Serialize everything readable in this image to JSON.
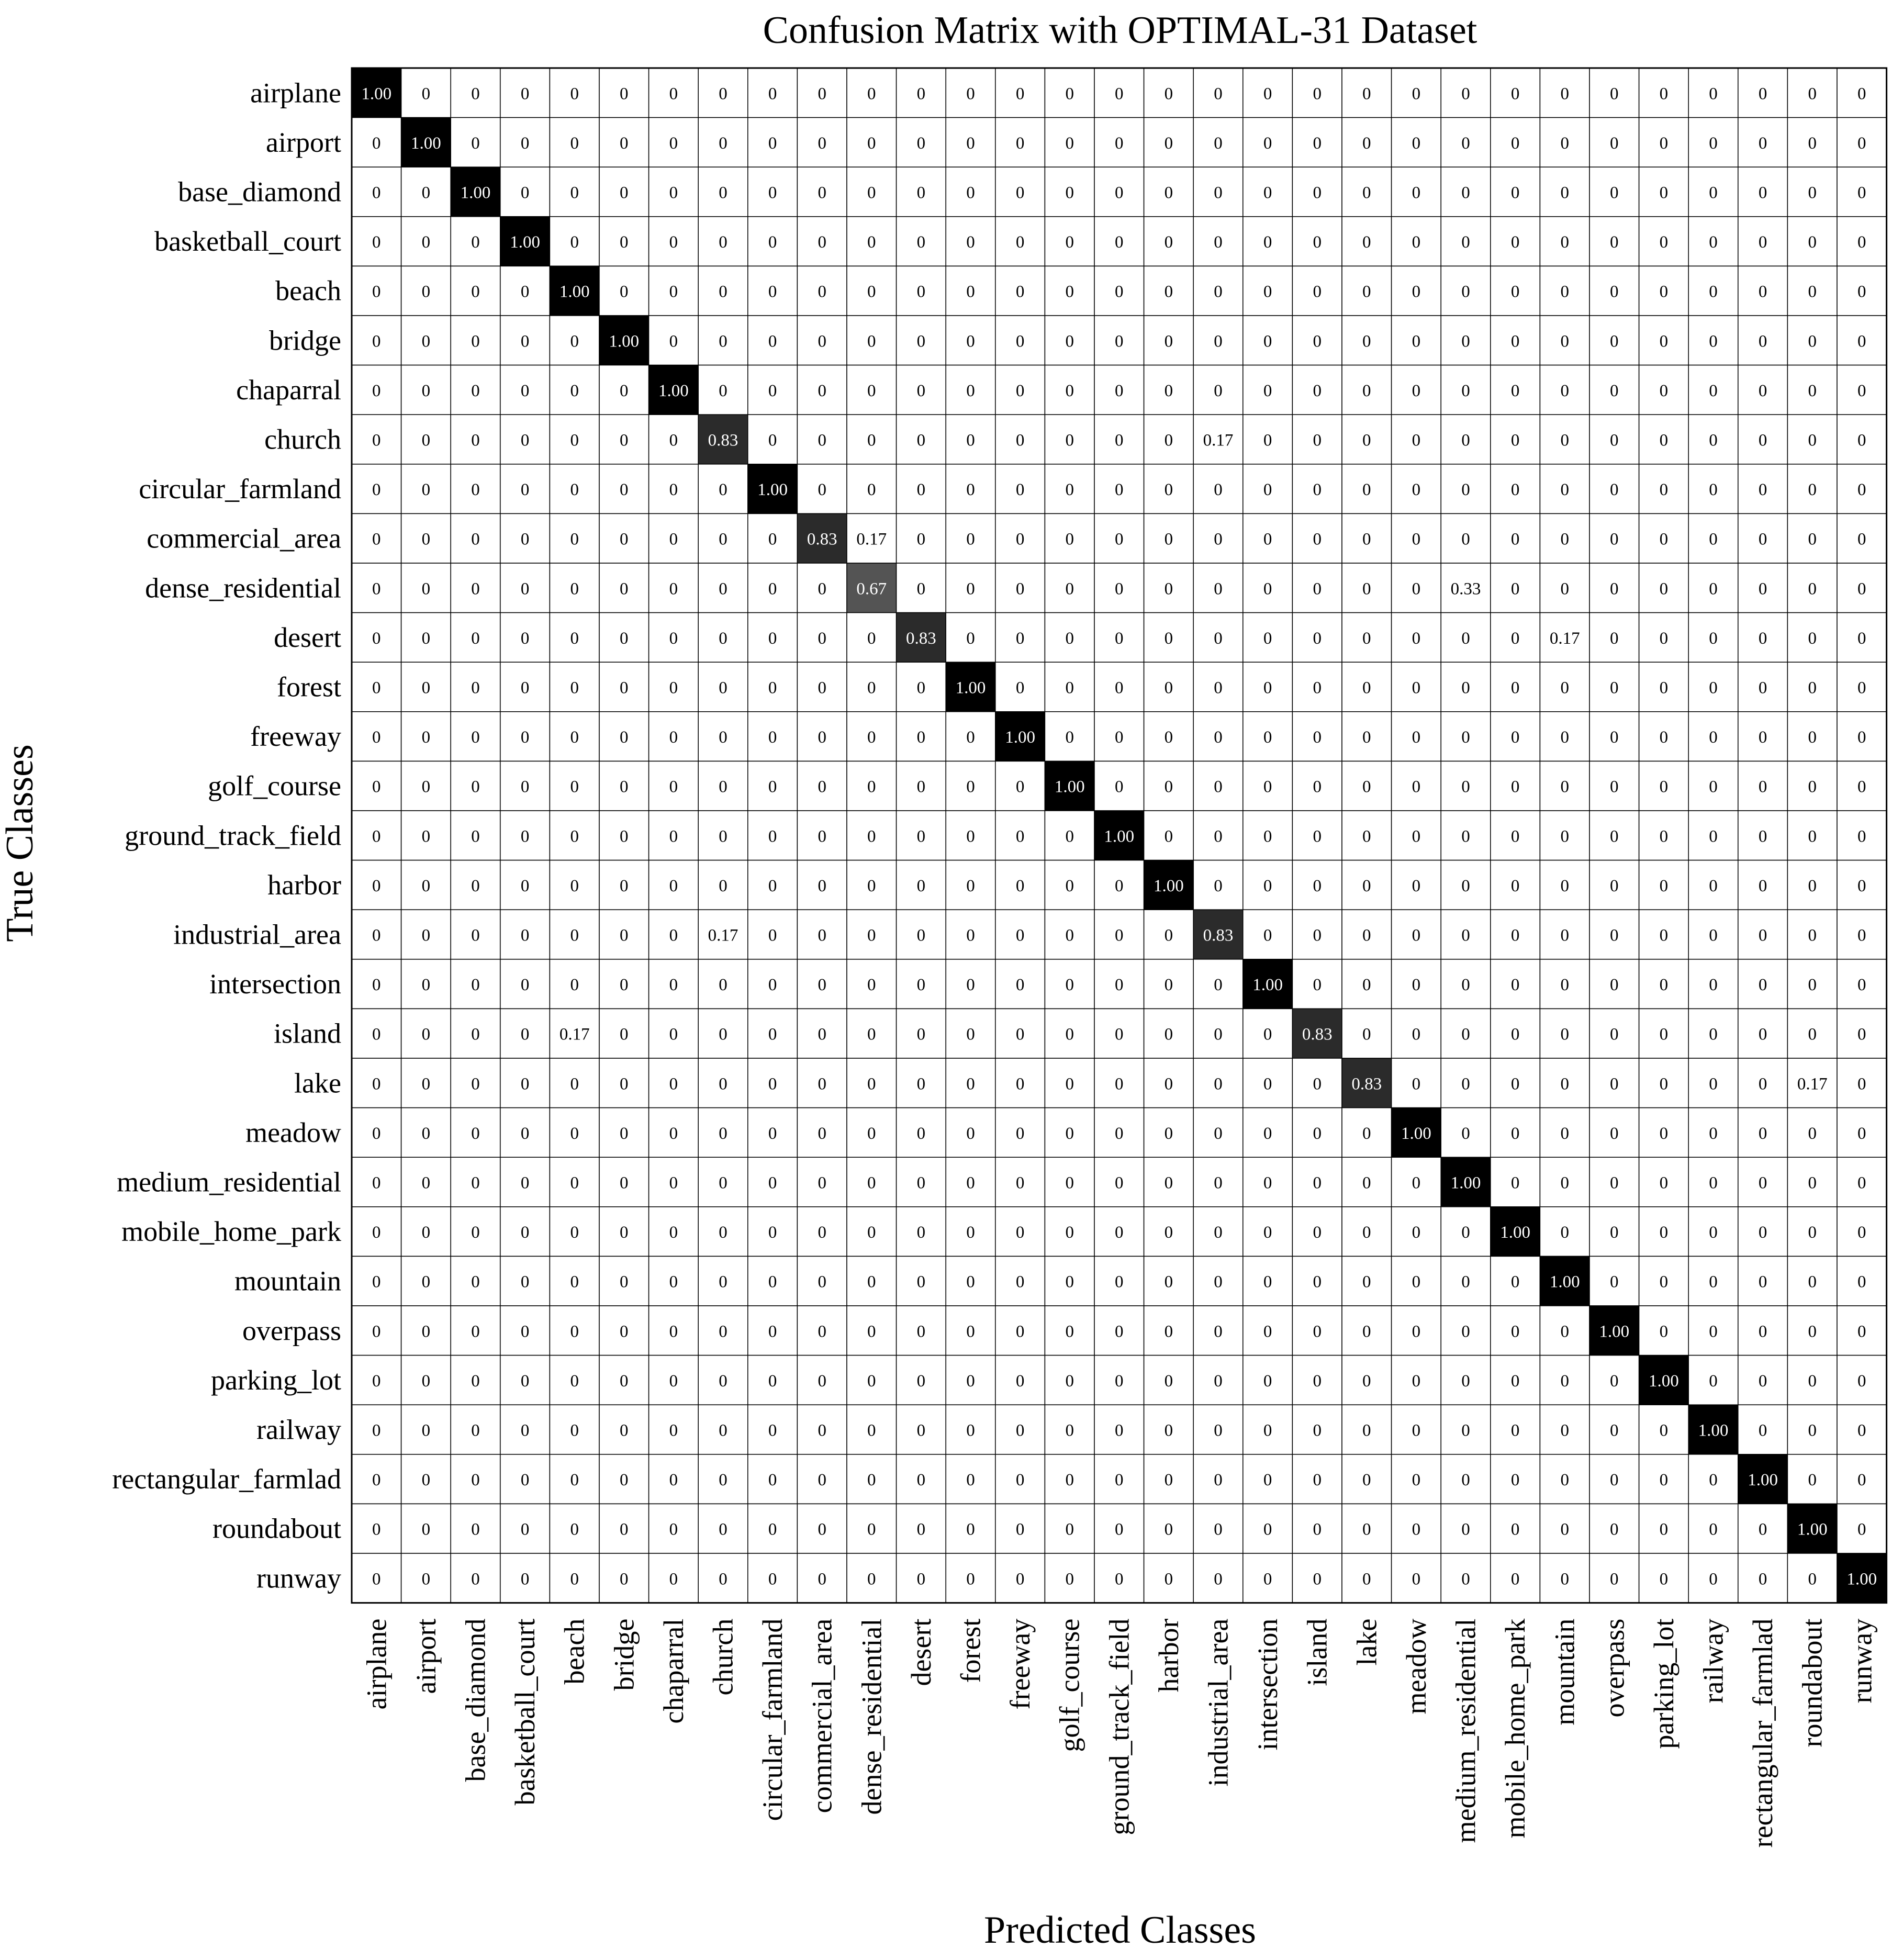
{
  "chart_data": {
    "type": "heatmap",
    "title": "Confusion Matrix with OPTIMAL-31 Dataset",
    "xlabel": "Predicted Classes",
    "ylabel": "True Classes",
    "classes": [
      "airplane",
      "airport",
      "base_diamond",
      "basketball_court",
      "beach",
      "bridge",
      "chaparral",
      "church",
      "circular_farmland",
      "commercial_area",
      "dense_residential",
      "desert",
      "forest",
      "freeway",
      "golf_course",
      "ground_track_field",
      "harbor",
      "industrial_area",
      "intersection",
      "island",
      "lake",
      "meadow",
      "medium_residential",
      "mobile_home_park",
      "mountain",
      "overpass",
      "parking_lot",
      "railway",
      "rectangular_farmlad",
      "roundabout",
      "runway"
    ],
    "diagonal": [
      1.0,
      1.0,
      1.0,
      1.0,
      1.0,
      1.0,
      1.0,
      0.83,
      1.0,
      0.83,
      0.67,
      0.83,
      1.0,
      1.0,
      1.0,
      1.0,
      1.0,
      0.83,
      1.0,
      0.83,
      0.83,
      1.0,
      1.0,
      1.0,
      1.0,
      1.0,
      1.0,
      1.0,
      1.0,
      1.0,
      1.0
    ],
    "off_diagonal": [
      {
        "row": "church",
        "col": "industrial_area",
        "value": 0.17
      },
      {
        "row": "commercial_area",
        "col": "dense_residential",
        "value": 0.17
      },
      {
        "row": "dense_residential",
        "col": "medium_residential",
        "value": 0.33
      },
      {
        "row": "desert",
        "col": "mountain",
        "value": 0.17
      },
      {
        "row": "industrial_area",
        "col": "church",
        "value": 0.17
      },
      {
        "row": "island",
        "col": "beach",
        "value": 0.17
      },
      {
        "row": "lake",
        "col": "roundabout",
        "value": 0.17
      }
    ],
    "zero_label": "0",
    "value_range": [
      0,
      1
    ],
    "colormap": {
      "low": "#ffffff",
      "high": "#000000"
    },
    "grid": true,
    "legend": "none"
  }
}
